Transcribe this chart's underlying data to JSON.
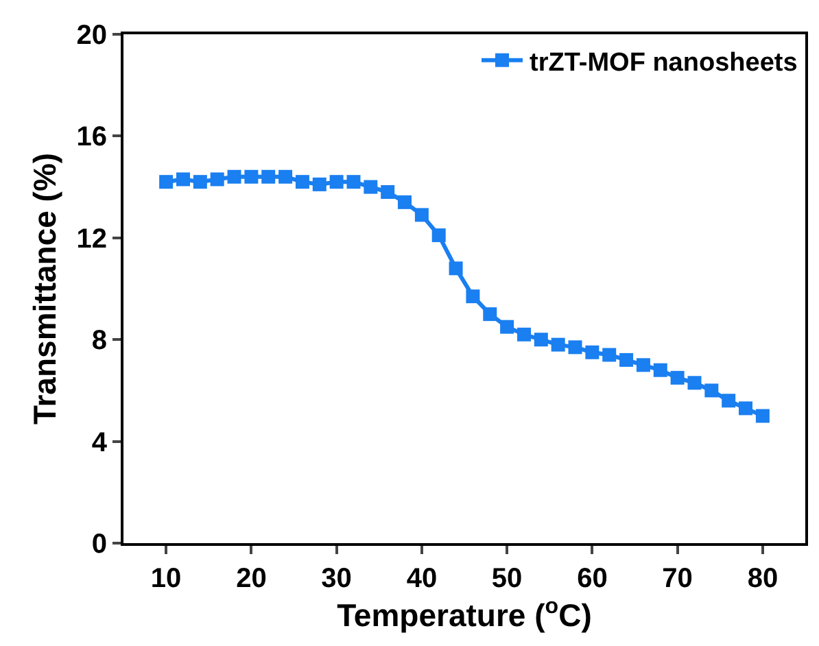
{
  "chart_data": {
    "type": "line",
    "xlabel": "Temperature ($^{o}$C)",
    "ylabel": "Transmittance (%)",
    "x": [
      10,
      12,
      14,
      16,
      18,
      20,
      22,
      24,
      26,
      28,
      30,
      32,
      34,
      36,
      38,
      40,
      42,
      44,
      46,
      48,
      50,
      52,
      54,
      56,
      58,
      60,
      62,
      64,
      66,
      68,
      70,
      72,
      74,
      76,
      78,
      80
    ],
    "series": [
      {
        "name": "trZT-MOF nanosheets",
        "color": "#1a7ff0",
        "values": [
          14.2,
          14.3,
          14.2,
          14.3,
          14.4,
          14.4,
          14.4,
          14.4,
          14.2,
          14.1,
          14.2,
          14.2,
          14.0,
          13.8,
          13.4,
          12.9,
          12.1,
          10.8,
          9.7,
          9.0,
          8.5,
          8.2,
          8.0,
          7.8,
          7.7,
          7.5,
          7.4,
          7.2,
          7.0,
          6.8,
          6.5,
          6.3,
          6.0,
          5.6,
          5.3,
          5.0
        ]
      }
    ],
    "xlim": [
      5,
      85
    ],
    "xticks": [
      10,
      20,
      30,
      40,
      50,
      60,
      70,
      80
    ],
    "ylim": [
      0,
      20
    ],
    "yticks": [
      0,
      4,
      8,
      12,
      16,
      20
    ],
    "grid": false,
    "legend": "top right",
    "marker": "square",
    "line_style": "solid"
  }
}
